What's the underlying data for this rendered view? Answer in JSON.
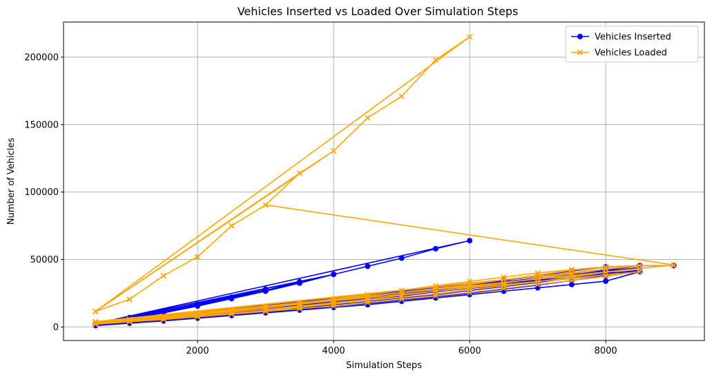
{
  "chart_data": {
    "type": "line",
    "title": "Vehicles Inserted vs Loaded Over Simulation Steps",
    "xlabel": "Simulation Steps",
    "ylabel": "Number of Vehicles",
    "xlim": [
      30,
      9450
    ],
    "ylim": [
      -10000,
      226000
    ],
    "xticks": [
      2000,
      4000,
      6000,
      8000
    ],
    "yticks": [
      0,
      50000,
      100000,
      150000,
      200000
    ],
    "xtick_labels": [
      "2000",
      "4000",
      "6000",
      "8000"
    ],
    "ytick_labels": [
      "0",
      "50000",
      "100000",
      "150000",
      "200000"
    ],
    "grid": true,
    "legend_position": "top-right",
    "series": [
      {
        "name": "Vehicles Inserted",
        "color": "#0000ff",
        "marker": "circle",
        "x": [
          500,
          1000,
          1500,
          2000,
          2500,
          3000,
          3500,
          4000,
          4500,
          5000,
          5500,
          6000,
          500,
          1000,
          1500,
          2000,
          2500,
          3000,
          3500,
          4000,
          500,
          1000,
          1500,
          2000,
          2500,
          3000,
          3500,
          500,
          1000,
          1500,
          2000,
          2500,
          3000,
          500,
          1000,
          1500,
          2000,
          2500,
          3000,
          3500,
          4000,
          4500,
          5000,
          5500,
          6000,
          6500,
          7000,
          7500,
          8000,
          8500,
          500,
          1000,
          1500,
          2000,
          2500,
          3000,
          3500,
          4000,
          4500,
          5000,
          5500,
          6000,
          6500,
          7000,
          7500,
          8000,
          8500,
          500,
          1000,
          1500,
          2000,
          2500,
          3000,
          3500,
          4000,
          4500,
          5000,
          5500,
          6000,
          6500,
          7000,
          7500,
          8000,
          8500,
          500,
          1000,
          1500,
          2000,
          2500,
          3000,
          3500,
          4000,
          4500,
          5000,
          5500,
          6000,
          6500,
          7000,
          7500,
          8000,
          8500,
          500,
          1000,
          1500,
          2000,
          2500,
          3000,
          3500,
          4000,
          4500,
          5000,
          5500,
          6000,
          6500,
          7000,
          7500,
          8000,
          8500,
          9000
        ],
        "y": [
          2500,
          6500,
          11000,
          16000,
          21500,
          27000,
          33000,
          39000,
          45000,
          51000,
          58000,
          64000,
          2500,
          6000,
          10500,
          15500,
          21000,
          26500,
          32500,
          39000,
          2500,
          6500,
          11500,
          16500,
          21500,
          27000,
          33500,
          2500,
          7000,
          12000,
          17000,
          22000,
          28000,
          1000,
          2800,
          4500,
          6500,
          8500,
          10500,
          12500,
          14500,
          16500,
          19000,
          21500,
          24000,
          26500,
          29000,
          31500,
          34000,
          41000,
          1500,
          3200,
          5200,
          7000,
          9000,
          11000,
          13000,
          15500,
          17500,
          20000,
          22500,
          25000,
          28000,
          31000,
          34500,
          38000,
          42000,
          1800,
          3800,
          5800,
          7800,
          9800,
          12000,
          14000,
          16500,
          19000,
          21500,
          24000,
          27000,
          30000,
          33000,
          36500,
          40000,
          44000,
          2200,
          4200,
          6200,
          8500,
          10500,
          13000,
          15500,
          18000,
          20500,
          23000,
          26000,
          29000,
          32000,
          35000,
          38500,
          42000,
          45500,
          2500,
          4500,
          6800,
          9000,
          11500,
          14000,
          16500,
          19000,
          22000,
          25000,
          28000,
          31000,
          34500,
          38000,
          41500,
          44500,
          45500,
          45500
        ]
      },
      {
        "name": "Vehicles Loaded",
        "color": "#ffa500",
        "marker": "x",
        "x": [
          500,
          1000,
          1500,
          2000,
          2500,
          3000,
          3500,
          4000,
          4500,
          5000,
          5500,
          6000,
          500,
          1000,
          1500,
          2000,
          2500,
          3000,
          3500,
          4000,
          500,
          1000,
          1500,
          2000,
          2500,
          3000,
          3500,
          500,
          1000,
          1500,
          2000,
          2500,
          3000,
          9000,
          500,
          1000,
          1500,
          2000,
          2500,
          3000,
          3500,
          4000,
          4500,
          5000,
          5500,
          6000,
          6500,
          7000,
          7500,
          8000,
          8500,
          500,
          1000,
          1500,
          2000,
          2500,
          3000,
          3500,
          4000,
          4500,
          5000,
          5500,
          6000,
          6500,
          7000,
          7500,
          8000,
          8500,
          500,
          1000,
          1500,
          2000,
          2500,
          3000,
          3500,
          4000,
          4500,
          5000,
          5500,
          6000,
          6500,
          7000,
          7500,
          8000,
          8500,
          500,
          1000,
          1500,
          2000,
          2500,
          3000,
          3500,
          4000,
          4500,
          5000,
          5500,
          6000,
          6500,
          7000,
          7500,
          8000,
          8500,
          500,
          1000,
          1500,
          2000,
          2500,
          3000,
          3500,
          4000,
          4500,
          5000,
          5500,
          6000,
          6500,
          7000,
          7500,
          8000,
          8500,
          9000
        ],
        "y": [
          11500,
          20500,
          38000,
          52000,
          75000,
          90500,
          114000,
          130500,
          155000,
          171000,
          198000,
          215000,
          11500,
          20500,
          38000,
          52000,
          75000,
          90500,
          114000,
          130500,
          11500,
          20500,
          38000,
          52000,
          75000,
          90500,
          114000,
          11500,
          20500,
          38000,
          52000,
          75000,
          90500,
          46000,
          2000,
          3800,
          5500,
          7500,
          9500,
          11500,
          13500,
          15500,
          18000,
          20500,
          23000,
          25500,
          28500,
          31500,
          34500,
          37500,
          41000,
          2500,
          4200,
          6000,
          8000,
          10000,
          12000,
          14500,
          17000,
          19500,
          22000,
          24500,
          27500,
          30500,
          33500,
          37000,
          40500,
          43000,
          3000,
          4800,
          6800,
          8800,
          11000,
          13200,
          15500,
          18000,
          20500,
          23500,
          26500,
          29500,
          32500,
          36000,
          39500,
          43000,
          45500,
          3500,
          5300,
          7300,
          9500,
          11800,
          14200,
          16800,
          19500,
          22500,
          25500,
          28500,
          31500,
          35000,
          38500,
          42000,
          44500,
          45500,
          4000,
          5800,
          8000,
          10200,
          12600,
          15200,
          17800,
          20800,
          24000,
          27200,
          30500,
          33800,
          37000,
          40000,
          42500,
          44500,
          45500,
          45500
        ]
      }
    ]
  }
}
